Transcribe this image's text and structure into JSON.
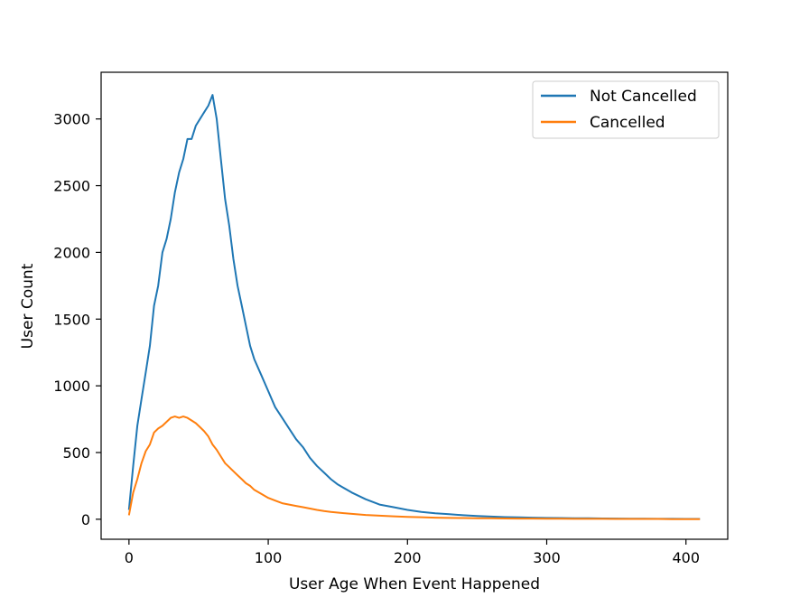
{
  "chart_data": {
    "type": "line",
    "title": "",
    "xlabel": "User Age When Event Happened",
    "ylabel": "User Count",
    "xlim": [
      -20,
      430
    ],
    "ylim": [
      -150,
      3350
    ],
    "xticks": [
      0,
      100,
      200,
      300,
      400
    ],
    "yticks": [
      0,
      500,
      1000,
      1500,
      2000,
      2500,
      3000
    ],
    "grid": false,
    "legend_position": "top-right",
    "series": [
      {
        "name": "Not Cancelled",
        "color": "#1f77b4",
        "x": [
          0,
          3,
          6,
          9,
          12,
          15,
          18,
          21,
          24,
          27,
          30,
          33,
          36,
          39,
          42,
          45,
          48,
          51,
          54,
          57,
          60,
          63,
          66,
          69,
          72,
          75,
          78,
          81,
          84,
          87,
          90,
          95,
          100,
          105,
          110,
          115,
          120,
          125,
          130,
          135,
          140,
          145,
          150,
          160,
          170,
          180,
          190,
          200,
          210,
          220,
          230,
          240,
          250,
          260,
          270,
          280,
          290,
          300,
          310,
          320,
          330,
          340,
          350,
          360,
          370,
          380,
          390,
          400,
          410
        ],
        "y": [
          70,
          400,
          700,
          900,
          1100,
          1300,
          1600,
          1750,
          2000,
          2100,
          2250,
          2450,
          2600,
          2700,
          2850,
          2850,
          2950,
          3000,
          3050,
          3100,
          3180,
          3000,
          2700,
          2400,
          2200,
          1950,
          1750,
          1600,
          1450,
          1300,
          1200,
          1080,
          960,
          840,
          760,
          680,
          600,
          540,
          460,
          400,
          350,
          300,
          260,
          200,
          150,
          110,
          90,
          70,
          55,
          45,
          38,
          30,
          24,
          20,
          16,
          14,
          12,
          10,
          9,
          8,
          7,
          6,
          5,
          4,
          4,
          3,
          3,
          2,
          2
        ]
      },
      {
        "name": "Cancelled",
        "color": "#ff7f0e",
        "x": [
          0,
          3,
          6,
          9,
          12,
          15,
          18,
          21,
          24,
          27,
          30,
          33,
          36,
          39,
          42,
          45,
          48,
          51,
          54,
          57,
          60,
          63,
          66,
          69,
          72,
          75,
          78,
          81,
          84,
          87,
          90,
          95,
          100,
          105,
          110,
          115,
          120,
          125,
          130,
          135,
          140,
          145,
          150,
          160,
          170,
          180,
          190,
          200,
          210,
          220,
          230,
          240,
          250,
          260,
          270,
          280,
          290,
          300,
          310,
          320,
          330,
          340,
          350,
          360,
          370,
          380,
          390,
          400,
          410
        ],
        "y": [
          30,
          200,
          300,
          420,
          510,
          560,
          650,
          680,
          700,
          730,
          760,
          770,
          760,
          770,
          760,
          740,
          720,
          690,
          660,
          620,
          560,
          520,
          470,
          420,
          390,
          360,
          330,
          300,
          270,
          250,
          220,
          190,
          160,
          140,
          120,
          110,
          100,
          90,
          80,
          70,
          62,
          55,
          50,
          40,
          32,
          27,
          22,
          18,
          15,
          12,
          10,
          9,
          8,
          7,
          6,
          5,
          5,
          4,
          4,
          3,
          3,
          3,
          2,
          2,
          2,
          2,
          1,
          1,
          1
        ]
      }
    ]
  }
}
